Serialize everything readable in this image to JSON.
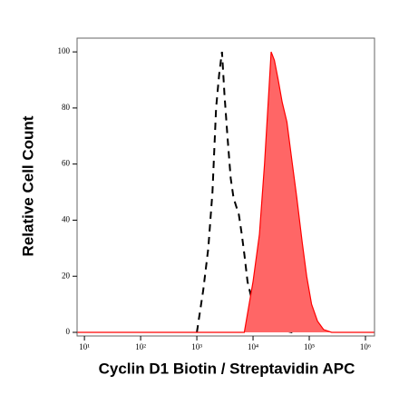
{
  "chart_data": {
    "type": "line",
    "xlabel": "Cyclin D1 Biotin / Streptavidin APC",
    "ylabel": "Relative Cell Count",
    "xscale": "log",
    "xlim": [
      7.4,
      1450000
    ],
    "ylim": [
      -1.3,
      104.9
    ],
    "xticks": [
      {
        "value": 10,
        "label": "10¹"
      },
      {
        "value": 100,
        "label": "10²"
      },
      {
        "value": 1000,
        "label": "10³"
      },
      {
        "value": 10000,
        "label": "10⁴"
      },
      {
        "value": 100000,
        "label": "10⁵"
      },
      {
        "value": 1000000,
        "label": "10⁶"
      }
    ],
    "yticks": [
      0,
      20,
      40,
      60,
      80,
      100
    ],
    "series": [
      {
        "color": "#000000",
        "style": "dashed",
        "x": [
          1000,
          1300,
          1600,
          1900,
          2200,
          2500,
          2800,
          3100,
          3500,
          4000,
          4500,
          5000,
          5600,
          6300,
          7000,
          8000,
          10000,
          12000,
          15000,
          20000,
          30000,
          50000
        ],
        "values": [
          0,
          15,
          30,
          50,
          80,
          92,
          100,
          85,
          70,
          55,
          48,
          45,
          42,
          35,
          28,
          18,
          10,
          6,
          4,
          2,
          1,
          0
        ]
      },
      {
        "color": "#ff0000",
        "fill": "#ff6666",
        "style": "solid",
        "x": [
          7.4,
          7000,
          10000,
          13000,
          16000,
          19000,
          21000,
          24000,
          28000,
          33000,
          40000,
          50000,
          60000,
          75000,
          90000,
          110000,
          140000,
          180000,
          250000,
          1450000
        ],
        "values": [
          0,
          0,
          18,
          35,
          60,
          85,
          100,
          97,
          90,
          82,
          75,
          60,
          48,
          32,
          20,
          10,
          4,
          1,
          0,
          0
        ]
      }
    ]
  }
}
